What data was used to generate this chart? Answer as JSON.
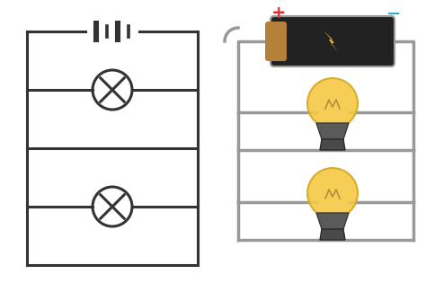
{
  "bg_color": "#ffffff",
  "circuit_color": "#333333",
  "wire_color": "#999999",
  "battery_body_color": "#222222",
  "battery_end_color": "#b5813a",
  "bolt_color": "#f0c040",
  "bulb_glass_color": "#f5c842",
  "bulb_base_color": "#5a5a5a",
  "plus_color": "#e03030",
  "minus_color": "#30b0c0",
  "line_width": 2.2,
  "wire_lw": 2.5
}
